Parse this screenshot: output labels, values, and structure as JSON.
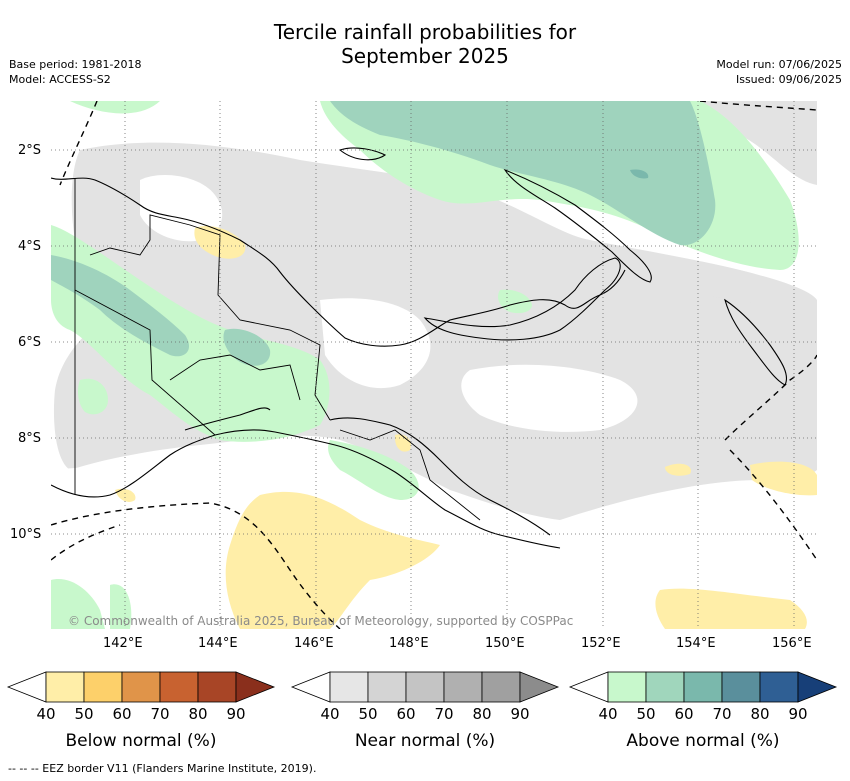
{
  "title": "Tercile rainfall probabilities for\nSeptember 2025",
  "meta_left": [
    "Base period: 1981-2018",
    "Model: ACCESS-S2"
  ],
  "meta_right": [
    "Model run: 07/06/2025",
    "Issued: 09/06/2025"
  ],
  "map": {
    "lat_ticks": [
      "2°S",
      "4°S",
      "6°S",
      "8°S",
      "10°S"
    ],
    "lon_ticks": [
      "142°E",
      "144°E",
      "146°E",
      "148°E",
      "150°E",
      "152°E",
      "154°E",
      "156°E"
    ],
    "copyright": "© Commonwealth of Australia 2025, Bureau of Meteorology, supported by COSPPac"
  },
  "colorbars": [
    {
      "label": "Below normal (%)",
      "ticks": [
        "40",
        "50",
        "60",
        "70",
        "80",
        "90"
      ],
      "colors": [
        "#ffffff",
        "#ffeea8",
        "#fdd06a",
        "#e09449",
        "#c86230",
        "#a84526",
        "#8a2f1c"
      ]
    },
    {
      "label": "Near normal (%)",
      "ticks": [
        "40",
        "50",
        "60",
        "70",
        "80",
        "90"
      ],
      "colors": [
        "#ffffff",
        "#e6e6e6",
        "#d4d4d4",
        "#c4c4c4",
        "#b0b0b0",
        "#a0a0a0",
        "#8c8c8c"
      ]
    },
    {
      "label": "Above normal (%)",
      "ticks": [
        "40",
        "50",
        "60",
        "70",
        "80",
        "90"
      ],
      "colors": [
        "#ffffff",
        "#c8f8cc",
        "#a0d6bc",
        "#7ab8ac",
        "#5a8f9c",
        "#2f5f94",
        "#173f78"
      ]
    }
  ],
  "footer": "--  --  -- EEZ border V11 (Flanders Marine Institute, 2019)."
}
